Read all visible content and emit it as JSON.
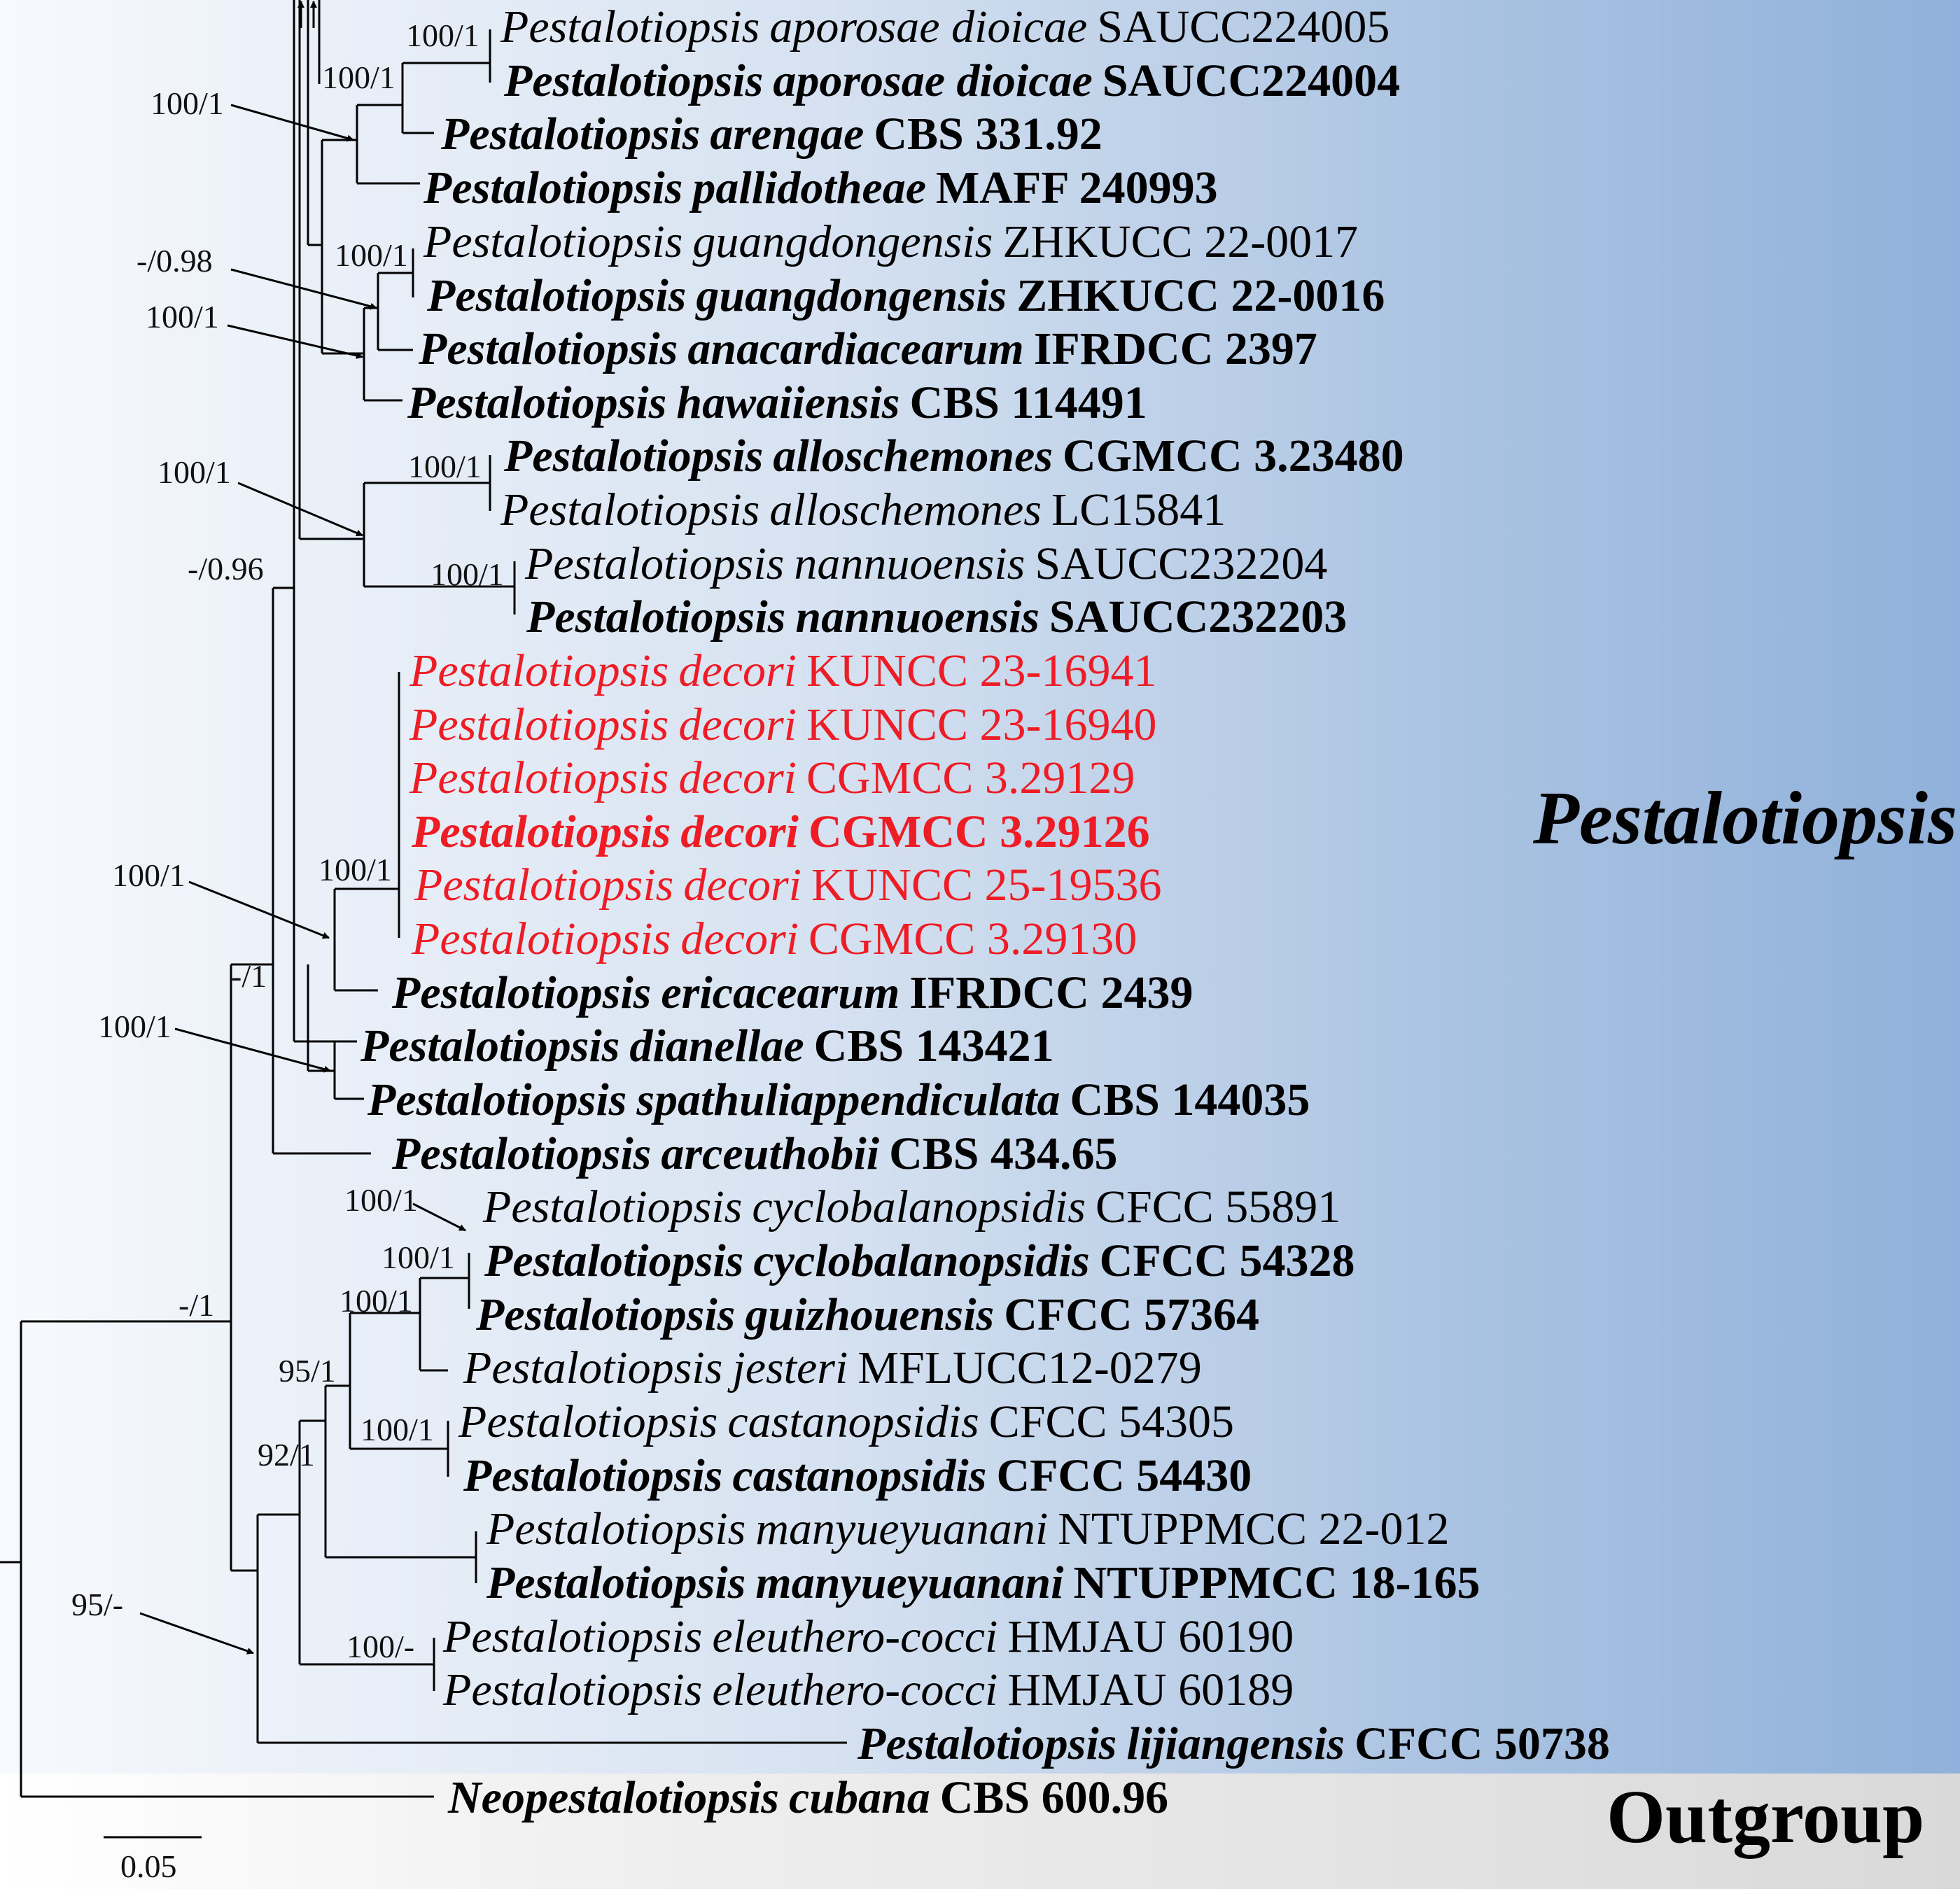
{
  "taxa": [
    {
      "genus": "Pestalotiopsis",
      "epithet": "aporosae dioicae",
      "strain": "SAUCC224005",
      "bold": false,
      "color": "#000000"
    },
    {
      "genus": "Pestalotiopsis",
      "epithet": "aporosae dioicae",
      "strain": "SAUCC224004",
      "bold": true,
      "color": "#000000"
    },
    {
      "genus": "Pestalotiopsis",
      "epithet": "arengae",
      "strain": "CBS 331.92",
      "bold": true,
      "color": "#000000"
    },
    {
      "genus": "Pestalotiopsis",
      "epithet": "pallidotheae",
      "strain": "MAFF 240993",
      "bold": true,
      "color": "#000000"
    },
    {
      "genus": "Pestalotiopsis",
      "epithet": "guangdongensis",
      "strain": "ZHKUCC 22-0017",
      "bold": false,
      "color": "#000000"
    },
    {
      "genus": "Pestalotiopsis",
      "epithet": "guangdongensis",
      "strain": "ZHKUCC 22-0016",
      "bold": true,
      "color": "#000000"
    },
    {
      "genus": "Pestalotiopsis",
      "epithet": "anacardiacearum",
      "strain": "IFRDCC 2397",
      "bold": true,
      "color": "#000000"
    },
    {
      "genus": "Pestalotiopsis",
      "epithet": "hawaiiensis",
      "strain": "CBS 114491",
      "bold": true,
      "color": "#000000"
    },
    {
      "genus": "Pestalotiopsis",
      "epithet": "alloschemones",
      "strain": "CGMCC 3.23480",
      "bold": true,
      "color": "#000000"
    },
    {
      "genus": "Pestalotiopsis",
      "epithet": "alloschemones",
      "strain": "LC15841",
      "bold": false,
      "color": "#000000"
    },
    {
      "genus": "Pestalotiopsis",
      "epithet": "nannuoensis",
      "strain": "SAUCC232204",
      "bold": false,
      "color": "#000000"
    },
    {
      "genus": "Pestalotiopsis",
      "epithet": "nannuoensis",
      "strain": "SAUCC232203",
      "bold": true,
      "color": "#000000"
    },
    {
      "genus": "Pestalotiopsis",
      "epithet": "decori",
      "strain": "KUNCC 23-16941",
      "bold": false,
      "color": "#ee1c25"
    },
    {
      "genus": "Pestalotiopsis",
      "epithet": "decori",
      "strain": "KUNCC 23-16940",
      "bold": false,
      "color": "#ee1c25"
    },
    {
      "genus": "Pestalotiopsis",
      "epithet": "decori",
      "strain": "CGMCC 3.29129",
      "bold": false,
      "color": "#ee1c25"
    },
    {
      "genus": "Pestalotiopsis",
      "epithet": "decori",
      "strain": "CGMCC 3.29126",
      "bold": true,
      "color": "#ee1c25"
    },
    {
      "genus": "Pestalotiopsis",
      "epithet": "decori",
      "strain": "KUNCC 25-19536",
      "bold": false,
      "color": "#ee1c25"
    },
    {
      "genus": "Pestalotiopsis",
      "epithet": "decori",
      "strain": "CGMCC 3.29130",
      "bold": false,
      "color": "#ee1c25"
    },
    {
      "genus": "Pestalotiopsis",
      "epithet": "ericacearum",
      "strain": "IFRDCC 2439",
      "bold": true,
      "color": "#000000"
    },
    {
      "genus": "Pestalotiopsis",
      "epithet": "dianellae",
      "strain": "CBS 143421",
      "bold": true,
      "color": "#000000"
    },
    {
      "genus": "Pestalotiopsis",
      "epithet": "spathuliappendiculata",
      "strain": "CBS 144035",
      "bold": true,
      "color": "#000000"
    },
    {
      "genus": "Pestalotiopsis",
      "epithet": "arceuthobii",
      "strain": "CBS 434.65",
      "bold": true,
      "color": "#000000"
    },
    {
      "genus": "Pestalotiopsis",
      "epithet": "cyclobalanopsidis",
      "strain": "CFCC 55891",
      "bold": false,
      "color": "#000000"
    },
    {
      "genus": "Pestalotiopsis",
      "epithet": "cyclobalanopsidis",
      "strain": "CFCC 54328",
      "bold": true,
      "color": "#000000"
    },
    {
      "genus": "Pestalotiopsis",
      "epithet": "guizhouensis",
      "strain": "CFCC 57364",
      "bold": true,
      "color": "#000000"
    },
    {
      "genus": "Pestalotiopsis",
      "epithet": "jesteri",
      "strain": "MFLUCC12-0279",
      "bold": false,
      "color": "#000000"
    },
    {
      "genus": "Pestalotiopsis",
      "epithet": "castanopsidis",
      "strain": "CFCC 54305",
      "bold": false,
      "color": "#000000"
    },
    {
      "genus": "Pestalotiopsis",
      "epithet": "castanopsidis",
      "strain": "CFCC 54430",
      "bold": true,
      "color": "#000000"
    },
    {
      "genus": "Pestalotiopsis",
      "epithet": "manyueyuanani",
      "strain": "NTUPPMCC 22-012",
      "bold": false,
      "color": "#000000"
    },
    {
      "genus": "Pestalotiopsis",
      "epithet": "manyueyuanani",
      "strain": "NTUPPMCC 18-165",
      "bold": true,
      "color": "#000000"
    },
    {
      "genus": "Pestalotiopsis",
      "epithet": "eleuthero-cocci",
      "strain": "HMJAU 60190",
      "bold": false,
      "color": "#000000"
    },
    {
      "genus": "Pestalotiopsis",
      "epithet": "eleuthero-cocci",
      "strain": "HMJAU 60189",
      "bold": false,
      "color": "#000000"
    },
    {
      "genus": "Pestalotiopsis",
      "epithet": "lijiangensis",
      "strain": "CFCC 50738",
      "bold": true,
      "color": "#000000"
    },
    {
      "genus": "Neopestalotiopsis",
      "epithet": "cubana",
      "strain": "CBS 600.96",
      "bold": true,
      "color": "#000000"
    }
  ],
  "support_values": [
    "100/1",
    "100/1",
    "100/1",
    "-/0.98",
    "100/1",
    "100/1",
    "100/1",
    "100/1",
    "-/0.96",
    "100/1",
    "100/1",
    "-/1",
    "100/1",
    "100/1",
    "100/1",
    "100/1",
    "95/1",
    "100/1",
    "92/1",
    "100/1",
    "100/-",
    "-/1",
    "95/-"
  ],
  "groups": {
    "ingroup": "Pestalotiopsis",
    "outgroup": "Outgroup"
  },
  "scale_bar": {
    "label": "0.05"
  },
  "colors": {
    "highlight": "#ee1c25",
    "ingroup_bg_end": "#90b1db",
    "outgroup_bg": "#d9d9d9"
  }
}
